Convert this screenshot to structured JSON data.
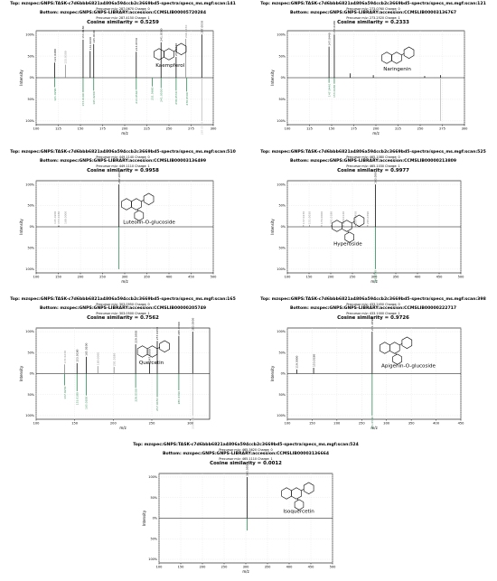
{
  "chart_data": [
    {
      "type": "bar",
      "top": "Top: mzspec:GNPS:TASK-c7d6bbb6821a4806a594ccb2c3669bd5-spectra/specs_ms.mgf:scan:141",
      "bottom": "Bottom: mzspec:GNPS:GNPS-LIBRARY:accession:CCMSLIB00005720284",
      "precursor": "Precursor m/z: 287.0670 Charge: 0",
      "precursor2": "Precursor m/z: 287.4150 Charge: 1",
      "similarity": "Cosine similarity = 0.5259",
      "compound": "Kaempferol",
      "xlabel": "m/z",
      "ylabel": "Intensity",
      "xlim": [
        100,
        300
      ],
      "xticks": [
        100,
        125,
        150,
        175,
        200,
        225,
        250,
        275,
        300
      ],
      "top_peaks": [
        {
          "mz": 121.028,
          "i": 35,
          "label": "121.0280",
          "c": "#111111"
        },
        {
          "mz": 133.03,
          "i": 30,
          "label": "133.0300",
          "c": "#888888"
        },
        {
          "mz": 153.018,
          "i": 88,
          "label": "153.0180",
          "c": "#111111"
        },
        {
          "mz": 161.024,
          "i": 62,
          "label": "161.0240",
          "c": "#111111"
        },
        {
          "mz": 165.019,
          "i": 78,
          "label": "165.0190",
          "c": "#111111"
        },
        {
          "mz": 213.055,
          "i": 60,
          "label": "213.0550",
          "c": "#111111"
        },
        {
          "mz": 241.05,
          "i": 82,
          "label": "241.0500",
          "c": "#111111"
        },
        {
          "mz": 258.053,
          "i": 48,
          "label": "258.0530",
          "c": "#111111"
        },
        {
          "mz": 269.045,
          "i": 90,
          "label": "269.0450",
          "c": "#888888"
        },
        {
          "mz": 287.055,
          "i": 100,
          "label": "287.0550",
          "c": "#111111"
        }
      ],
      "bottom_peaks": [
        {
          "mz": 121.029,
          "i": 22,
          "label": "121.0290",
          "c": "#2e8b57"
        },
        {
          "mz": 153.019,
          "i": 34,
          "label": "153.0190",
          "c": "#2e8b57"
        },
        {
          "mz": 165.02,
          "i": 30,
          "label": "165.0200",
          "c": "#2e8b57"
        },
        {
          "mz": 213.056,
          "i": 28,
          "label": "213.0560",
          "c": "#2e8b57"
        },
        {
          "mz": 231.066,
          "i": 20,
          "label": "231.0660",
          "c": "#2e8b57"
        },
        {
          "mz": 241.05,
          "i": 24,
          "label": "241.0500",
          "c": "#2e8b57"
        },
        {
          "mz": 258.053,
          "i": 30,
          "label": "258.0530",
          "c": "#2e8b57"
        },
        {
          "mz": 270.05,
          "i": 32,
          "label": "270.0500",
          "c": "#2e8b57"
        },
        {
          "mz": 287.055,
          "i": 100,
          "label": "287.0550",
          "c": "#bbbbbb"
        }
      ]
    },
    {
      "type": "bar",
      "top": "Top: mzspec:GNPS:TASK-c7d6bbb6821a4806a594ccb2c3669bd5-spectra/specs_ms.mgf:scan:121",
      "bottom": "Bottom: mzspec:GNPS:GNPS-LIBRARY:accession:CCMSLIB00003136767",
      "precursor": "Precursor m/z: 273.0760 Charge: 0",
      "precursor2": "Precursor m/z: 273.2520 Charge: 1",
      "similarity": "Cosine similarity = 0.2333",
      "compound": "Naringenin",
      "xlabel": "m/z",
      "ylabel": "Intensity",
      "xlim": [
        100,
        300
      ],
      "xticks": [
        100,
        125,
        150,
        175,
        200,
        225,
        250,
        275,
        300
      ],
      "top_peaks": [
        {
          "mz": 147.044,
          "i": 72,
          "label": "147.0440",
          "c": "#111111"
        },
        {
          "mz": 153.018,
          "i": 100,
          "label": "153.0180",
          "c": "#111111"
        },
        {
          "mz": 171.029,
          "i": 10,
          "label": "",
          "c": "#111111"
        },
        {
          "mz": 197.06,
          "i": 6,
          "label": "",
          "c": "#111111"
        },
        {
          "mz": 255.065,
          "i": 4,
          "label": "",
          "c": "#111111"
        },
        {
          "mz": 273.075,
          "i": 6,
          "label": "",
          "c": "#111111"
        }
      ],
      "bottom_peaks": [
        {
          "mz": 147.044,
          "i": 12,
          "label": "147.0440",
          "c": "#2e8b57"
        },
        {
          "mz": 153.018,
          "i": 14,
          "label": "153.0180",
          "c": "#2e8b57"
        },
        {
          "mz": 273.076,
          "i": 100,
          "label": "",
          "c": "#bbbbbb"
        }
      ]
    },
    {
      "type": "bar",
      "top": "Top: mzspec:GNPS:TASK-c7d6bbb6821a4806a594ccb2c3669bd5-spectra/specs_ms.mgf:scan:510",
      "bottom": "Bottom: mzspec:GNPS:GNPS-LIBRARY:accession:CCMSLIB00003136499",
      "precursor": "Precursor m/z: 449.1140 Charge: 0",
      "precursor2": "Precursor m/z: 449.1110 Charge: 1",
      "similarity": "Cosine similarity = 0.9958",
      "compound": "Luteolin-O-glucoside",
      "xlabel": "m/z",
      "ylabel": "Intensity",
      "xlim": [
        100,
        500
      ],
      "xticks": [
        100,
        150,
        200,
        250,
        300,
        350,
        400,
        450,
        500
      ],
      "top_peaks": [
        {
          "mz": 287.055,
          "i": 100,
          "label": "287.0550",
          "c": "#111111"
        },
        {
          "mz": 151.003,
          "i": 3,
          "label": "",
          "c": "#111111"
        }
      ],
      "bottom_peaks": [
        {
          "mz": 287.055,
          "i": 100,
          "label": "",
          "c": "#2e8b57"
        }
      ],
      "extra_labels": [
        {
          "mz": 145.02,
          "text": "145.0200",
          "c": "#888888"
        },
        {
          "mz": 153.018,
          "text": "153.0180",
          "c": "#888888"
        },
        {
          "mz": 168.0,
          "text": "168.0000",
          "c": "#888888"
        }
      ]
    },
    {
      "type": "bar",
      "top": "Top: mzspec:GNPS:TASK-c7d6bbb6821a4806a594ccb2c3669bd5-spectra/specs_ms.mgf:scan:525",
      "bottom": "Bottom: mzspec:GNPS:GNPS-LIBRARY:accession:CCMSLIB00000213809",
      "precursor": "Precursor m/z: 465.1080 Charge: 0",
      "precursor2": "Precursor m/z: 465.1030 Charge: 1",
      "similarity": "Cosine similarity = 0.9977",
      "compound": "Hyperoside",
      "xlabel": "m/z",
      "ylabel": "Intensity",
      "xlim": [
        100,
        500
      ],
      "xticks": [
        100,
        150,
        200,
        250,
        300,
        350,
        400,
        450,
        500
      ],
      "top_peaks": [
        {
          "mz": 137.023,
          "i": 4,
          "label": "137.0230",
          "c": "#888888"
        },
        {
          "mz": 151.003,
          "i": 4,
          "label": "151.0030",
          "c": "#888888"
        },
        {
          "mz": 179.0,
          "i": 4,
          "label": "179.0000",
          "c": "#888888"
        },
        {
          "mz": 201.018,
          "i": 4,
          "label": "201.0180",
          "c": "#888888"
        },
        {
          "mz": 229.014,
          "i": 4,
          "label": "229.0140",
          "c": "#888888"
        },
        {
          "mz": 257.045,
          "i": 4,
          "label": "257.0450",
          "c": "#888888"
        },
        {
          "mz": 285.039,
          "i": 4,
          "label": "285.0390",
          "c": "#888888"
        },
        {
          "mz": 303.05,
          "i": 100,
          "label": "303.0500",
          "c": "#111111"
        }
      ],
      "bottom_peaks": [
        {
          "mz": 303.05,
          "i": 100,
          "label": "303.0500",
          "c": "#2e8b57"
        }
      ]
    },
    {
      "type": "bar",
      "top": "Top: mzspec:GNPS:TASK-c7d6bbb6821a4806a594ccb2c3669bd5-spectra/specs_ms.mgf:scan:165",
      "bottom": "Bottom: mzspec:GNPS:GNPS-LIBRARY:accession:CCMSLIB00000205749",
      "precursor": "Precursor m/z: 303.0950 Charge: 0",
      "precursor2": "Precursor m/z: 303.0500 Charge: 1",
      "similarity": "Cosine similarity = 0.7562",
      "compound": "Quercetin",
      "xlabel": "m/z",
      "ylabel": "Intensity",
      "xlim": [
        100,
        325
      ],
      "xticks": [
        100,
        150,
        200,
        250,
        300
      ],
      "top_peaks": [
        {
          "mz": 137.023,
          "i": 22,
          "label": "137.0230",
          "c": "#888888"
        },
        {
          "mz": 153.018,
          "i": 25,
          "label": "153.0180",
          "c": "#111111"
        },
        {
          "mz": 165.02,
          "i": 40,
          "label": "165.0200",
          "c": "#111111"
        },
        {
          "mz": 180.0,
          "i": 18,
          "label": "180.0000",
          "c": "#888888"
        },
        {
          "mz": 201.018,
          "i": 16,
          "label": "201.0180",
          "c": "#888888"
        },
        {
          "mz": 229.05,
          "i": 70,
          "label": "229.0500",
          "c": "#111111"
        },
        {
          "mz": 247.06,
          "i": 26,
          "label": "247.0600",
          "c": "#111111"
        },
        {
          "mz": 257.045,
          "i": 78,
          "label": "257.0450",
          "c": "#111111"
        },
        {
          "mz": 285.039,
          "i": 90,
          "label": "285.0390",
          "c": "#111111"
        },
        {
          "mz": 303.05,
          "i": 100,
          "label": "303.0500",
          "c": "#111111"
        }
      ],
      "bottom_peaks": [
        {
          "mz": 137.023,
          "i": 28,
          "label": "137.0230",
          "c": "#2e8b57"
        },
        {
          "mz": 153.018,
          "i": 42,
          "label": "153.0180",
          "c": "#2e8b57"
        },
        {
          "mz": 165.02,
          "i": 52,
          "label": "165.0200",
          "c": "#2e8b57"
        },
        {
          "mz": 229.05,
          "i": 34,
          "label": "229.0500",
          "c": "#2e8b57"
        },
        {
          "mz": 257.045,
          "i": 56,
          "label": "257.0450",
          "c": "#2e8b57"
        },
        {
          "mz": 285.039,
          "i": 40,
          "label": "285.0390",
          "c": "#2e8b57"
        },
        {
          "mz": 303.05,
          "i": 100,
          "label": "303.0500",
          "c": "#bbbbbb"
        }
      ]
    },
    {
      "type": "bar",
      "top": "Top: mzspec:GNPS:TASK-c7d6bbb6821a4806a594ccb2c3669bd5-spectra/specs_ms.mgf:scan:398",
      "bottom": "Bottom: mzspec:GNPS:GNPS-LIBRARY:accession:CCMSLIB00000222717",
      "precursor": "Precursor m/z: 433.2450 Charge: 0",
      "precursor2": "Precursor m/z: 433.1000 Charge: 1",
      "similarity": "Cosine similarity = 0.9726",
      "compound": "Apigenin-O-glucoside",
      "xlabel": "m/z",
      "ylabel": "Intensity",
      "xlim": [
        100,
        450
      ],
      "xticks": [
        100,
        150,
        200,
        250,
        300,
        350,
        400,
        450
      ],
      "top_peaks": [
        {
          "mz": 119.0,
          "i": 10,
          "label": "119.0000",
          "c": "#111111"
        },
        {
          "mz": 153.018,
          "i": 14,
          "label": "153.0180",
          "c": "#111111"
        },
        {
          "mz": 271.059,
          "i": 100,
          "label": "271.0590",
          "c": "#111111"
        }
      ],
      "bottom_peaks": [
        {
          "mz": 271.059,
          "i": 100,
          "label": "271.0590",
          "c": "#2e8b57"
        }
      ]
    },
    {
      "type": "bar",
      "top": "Top: mzspec:GNPS:TASK-c7d6bbb6821a4806a594ccb2c3669bd5-spectra/specs_ms.mgf:scan:524",
      "bottom": "Bottom: mzspec:GNPS:GNPS-LIBRARY:accession:CCMSLIB00003136664",
      "precursor": "Precursor m/z: 465.3620 Charge: 0",
      "precursor2": "Precursor m/z: 465.1110 Charge: 1",
      "similarity": "Cosine similarity = 0.0012",
      "compound": "Isoquercetin",
      "xlabel": "m/z",
      "ylabel": "Intensity",
      "xlim": [
        100,
        500
      ],
      "xticks": [
        100,
        150,
        200,
        250,
        300,
        350,
        400,
        450,
        500
      ],
      "top_peaks": [
        {
          "mz": 303.05,
          "i": 100,
          "label": "303.0500",
          "c": "#111111"
        }
      ],
      "bottom_peaks": [
        {
          "mz": 303.05,
          "i": 30,
          "label": "",
          "c": "#2e8b57"
        }
      ]
    }
  ]
}
